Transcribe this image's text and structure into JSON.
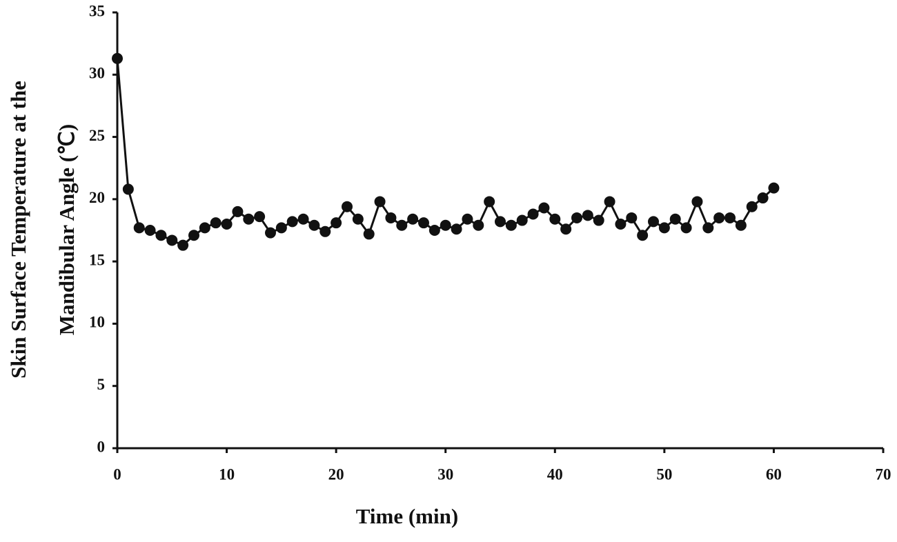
{
  "chart_data": {
    "type": "line",
    "xlabel": "Time (min)",
    "ylabel": [
      "Skin Surface Temperature at the",
      "Mandibular Angle (℃)"
    ],
    "x": [
      0,
      1,
      2,
      3,
      4,
      5,
      6,
      7,
      8,
      9,
      10,
      11,
      12,
      13,
      14,
      15,
      16,
      17,
      18,
      19,
      20,
      21,
      22,
      23,
      24,
      25,
      26,
      27,
      28,
      29,
      30,
      31,
      32,
      33,
      34,
      35,
      36,
      37,
      38,
      39,
      40,
      41,
      42,
      43,
      44,
      45,
      46,
      47,
      48,
      49,
      50,
      51,
      52,
      53,
      54,
      55,
      56,
      57,
      58,
      59,
      60
    ],
    "values": [
      31.3,
      20.8,
      17.7,
      17.5,
      17.1,
      16.7,
      16.3,
      17.1,
      17.7,
      18.1,
      18.0,
      19.0,
      18.4,
      18.6,
      17.3,
      17.7,
      18.2,
      18.4,
      17.9,
      17.4,
      18.1,
      19.4,
      18.4,
      17.2,
      19.8,
      18.5,
      17.9,
      18.4,
      18.1,
      17.5,
      17.9,
      17.6,
      18.4,
      17.9,
      19.8,
      18.2,
      17.9,
      18.3,
      18.8,
      19.3,
      18.4,
      17.6,
      18.5,
      18.7,
      18.3,
      19.8,
      18.0,
      18.5,
      17.1,
      18.2,
      17.7,
      18.4,
      17.7,
      19.8,
      17.7,
      18.5,
      18.5,
      17.9,
      19.4,
      20.1,
      20.9
    ],
    "color": "#111111",
    "xlim": [
      0,
      70
    ],
    "xticks": [
      0,
      10,
      20,
      30,
      40,
      50,
      60,
      70
    ],
    "ylim": [
      0,
      35
    ],
    "yticks": [
      0,
      5,
      10,
      15,
      20,
      25,
      30,
      35
    ],
    "grid": false
  }
}
